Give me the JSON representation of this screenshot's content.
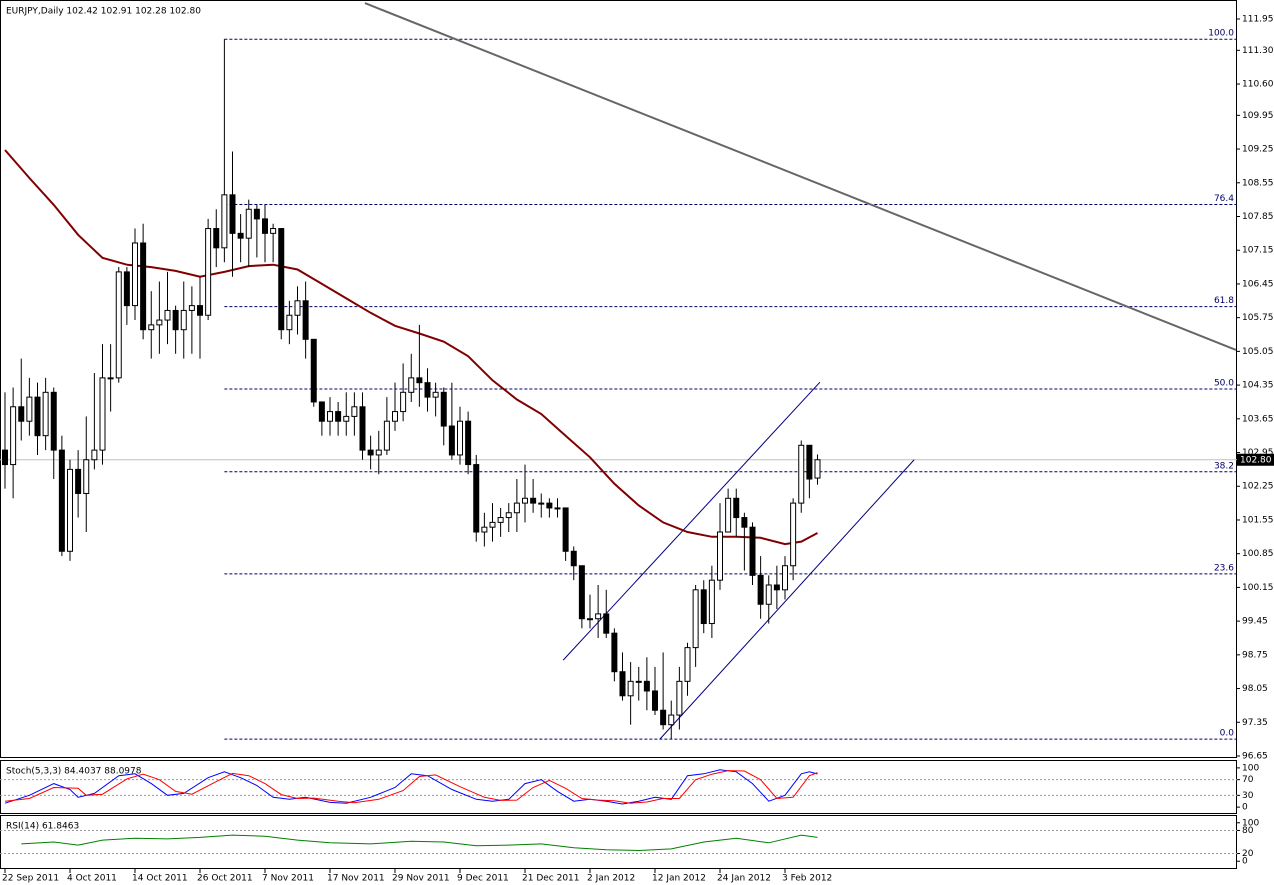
{
  "chart_data": {
    "type": "candlestick",
    "title": "EURJPY,Daily  102.42 102.91 102.28 102.80",
    "ohlc": [
      [
        103.0,
        104.2,
        102.2,
        102.7
      ],
      [
        102.7,
        104.3,
        102.0,
        103.9
      ],
      [
        103.9,
        104.9,
        103.2,
        103.6
      ],
      [
        103.6,
        104.5,
        103.3,
        104.1
      ],
      [
        104.1,
        104.4,
        102.9,
        103.3
      ],
      [
        103.3,
        104.5,
        103.0,
        104.2
      ],
      [
        104.2,
        104.3,
        102.4,
        103.0
      ],
      [
        103.0,
        103.3,
        100.8,
        100.9
      ],
      [
        100.9,
        102.8,
        100.7,
        102.6
      ],
      [
        102.6,
        103.0,
        101.6,
        102.1
      ],
      [
        102.1,
        103.7,
        101.3,
        102.8
      ],
      [
        102.8,
        104.6,
        102.6,
        103.0
      ],
      [
        103.0,
        105.2,
        102.7,
        104.5
      ],
      [
        104.5,
        105.2,
        103.8,
        104.5
      ],
      [
        104.5,
        106.8,
        104.4,
        106.7
      ],
      [
        106.7,
        106.8,
        105.6,
        106.0
      ],
      [
        106.0,
        107.6,
        105.7,
        107.3
      ],
      [
        107.3,
        107.7,
        105.3,
        105.5
      ],
      [
        105.5,
        106.3,
        104.9,
        105.6
      ],
      [
        105.6,
        106.5,
        105.0,
        105.7
      ],
      [
        105.7,
        106.7,
        105.2,
        105.9
      ],
      [
        105.9,
        106.0,
        105.0,
        105.5
      ],
      [
        105.5,
        106.5,
        104.9,
        105.9
      ],
      [
        105.9,
        106.4,
        105.0,
        106.0
      ],
      [
        106.0,
        106.6,
        104.9,
        105.8
      ],
      [
        105.8,
        107.8,
        105.7,
        107.6
      ],
      [
        107.6,
        108.0,
        106.8,
        107.2
      ],
      [
        107.2,
        111.53,
        106.9,
        108.3
      ],
      [
        108.3,
        109.2,
        106.6,
        107.5
      ],
      [
        107.5,
        107.9,
        106.9,
        107.4
      ],
      [
        107.4,
        108.2,
        106.8,
        108.0
      ],
      [
        108.0,
        108.1,
        107.0,
        107.8
      ],
      [
        107.8,
        108.1,
        106.9,
        107.5
      ],
      [
        107.5,
        107.7,
        106.9,
        107.6
      ],
      [
        107.6,
        107.6,
        105.3,
        105.5
      ],
      [
        105.5,
        106.1,
        105.2,
        105.8
      ],
      [
        105.8,
        106.4,
        105.4,
        106.1
      ],
      [
        106.1,
        106.5,
        104.9,
        105.3
      ],
      [
        105.3,
        105.3,
        103.9,
        104.0
      ],
      [
        104.0,
        104.0,
        103.3,
        103.6
      ],
      [
        103.6,
        104.1,
        103.3,
        103.8
      ],
      [
        103.8,
        104.0,
        103.3,
        103.6
      ],
      [
        103.6,
        104.2,
        103.3,
        103.7
      ],
      [
        103.7,
        104.2,
        103.3,
        103.9
      ],
      [
        103.9,
        104.2,
        102.8,
        103.0
      ],
      [
        103.0,
        103.3,
        102.6,
        102.9
      ],
      [
        102.9,
        103.4,
        102.5,
        103.0
      ],
      [
        103.0,
        104.1,
        102.9,
        103.6
      ],
      [
        103.6,
        104.4,
        103.4,
        103.8
      ],
      [
        103.8,
        104.8,
        103.6,
        104.2
      ],
      [
        104.2,
        105.0,
        104.0,
        104.5
      ],
      [
        104.5,
        105.6,
        103.9,
        104.4
      ],
      [
        104.4,
        104.7,
        103.8,
        104.1
      ],
      [
        104.1,
        104.4,
        103.7,
        104.2
      ],
      [
        104.2,
        104.3,
        103.1,
        103.5
      ],
      [
        103.5,
        104.4,
        102.8,
        102.9
      ],
      [
        102.9,
        103.9,
        102.7,
        103.6
      ],
      [
        103.6,
        103.8,
        102.5,
        102.7
      ],
      [
        102.7,
        102.9,
        101.1,
        101.3
      ],
      [
        101.3,
        101.7,
        101.0,
        101.4
      ],
      [
        101.4,
        101.9,
        101.1,
        101.5
      ],
      [
        101.5,
        101.8,
        101.2,
        101.6
      ],
      [
        101.6,
        101.9,
        101.3,
        101.7
      ],
      [
        101.7,
        102.4,
        101.3,
        101.9
      ],
      [
        101.9,
        102.7,
        101.5,
        102.0
      ],
      [
        102.0,
        102.4,
        101.7,
        101.9
      ],
      [
        101.9,
        102.1,
        101.6,
        101.9
      ],
      [
        101.9,
        102.0,
        101.6,
        101.8
      ],
      [
        101.8,
        102.0,
        101.6,
        101.8
      ],
      [
        101.8,
        101.8,
        100.7,
        100.9
      ],
      [
        100.9,
        101.0,
        100.3,
        100.6
      ],
      [
        100.6,
        100.6,
        99.3,
        99.5
      ],
      [
        99.5,
        100.0,
        99.3,
        99.5
      ],
      [
        99.5,
        100.2,
        99.1,
        99.6
      ],
      [
        99.6,
        100.1,
        99.1,
        99.2
      ],
      [
        99.2,
        99.3,
        98.2,
        98.4
      ],
      [
        98.4,
        98.8,
        97.8,
        97.9
      ],
      [
        97.9,
        98.6,
        97.3,
        98.2
      ],
      [
        98.2,
        98.5,
        97.8,
        98.2
      ],
      [
        98.2,
        98.7,
        97.6,
        98.0
      ],
      [
        98.0,
        98.5,
        97.5,
        97.6
      ],
      [
        97.6,
        98.8,
        97.2,
        97.3
      ],
      [
        97.3,
        97.8,
        97.0,
        97.5
      ],
      [
        97.5,
        98.5,
        97.2,
        98.2
      ],
      [
        98.2,
        99.0,
        97.9,
        98.9
      ],
      [
        98.9,
        100.2,
        98.5,
        100.1
      ],
      [
        100.1,
        100.3,
        99.2,
        99.4
      ],
      [
        99.4,
        100.6,
        99.1,
        100.3
      ],
      [
        100.3,
        101.9,
        100.1,
        101.3
      ],
      [
        101.3,
        102.2,
        101.3,
        102.0
      ],
      [
        102.0,
        102.2,
        101.2,
        101.6
      ],
      [
        101.6,
        101.7,
        100.5,
        101.4
      ],
      [
        101.4,
        101.5,
        100.2,
        100.4
      ],
      [
        100.4,
        100.8,
        99.5,
        99.8
      ],
      [
        99.8,
        100.4,
        99.4,
        100.2
      ],
      [
        100.2,
        100.6,
        99.7,
        100.1
      ],
      [
        100.1,
        100.8,
        99.9,
        100.6
      ],
      [
        100.6,
        102.0,
        100.3,
        101.9
      ],
      [
        101.9,
        103.2,
        101.7,
        103.1
      ],
      [
        103.1,
        103.1,
        102.0,
        102.4
      ],
      [
        102.42,
        102.91,
        102.28,
        102.8
      ]
    ],
    "colors": {
      "up": "#ffffff",
      "down": "#000000"
    },
    "ylim": [
      96.65,
      111.95
    ],
    "yticks": [
      111.95,
      {
        "value": 111.3,
        "label": "111.30"
      },
      {
        "value": 110.6,
        "label": "110.60"
      },
      109.95,
      109.25,
      108.55,
      107.85,
      107.15,
      106.45,
      105.75,
      105.05,
      104.35,
      103.65,
      102.95,
      102.25,
      101.55,
      100.85,
      100.15,
      99.45,
      98.75,
      98.05,
      97.35,
      96.65
    ],
    "xticks": [
      {
        "value": 0,
        "label": "22 Sep 2011"
      },
      {
        "value": 8,
        "label": "4 Oct 2011"
      },
      {
        "value": 16,
        "label": "14 Oct 2011"
      },
      {
        "value": 24,
        "label": "26 Oct 2011"
      },
      {
        "value": 32,
        "label": "7 Nov 2011"
      },
      {
        "value": 40,
        "label": "17 Nov 2011"
      },
      {
        "value": 48,
        "label": "29 Nov 2011"
      },
      {
        "value": 56,
        "label": "9 Dec 2011"
      },
      {
        "value": 64,
        "label": "21 Dec 2011"
      },
      {
        "value": 72,
        "label": "2 Jan 2012"
      },
      {
        "value": 80,
        "label": "12 Jan 2012"
      },
      {
        "value": 88,
        "label": "24 Jan 2012"
      },
      {
        "value": 96,
        "label": "3 Feb 2012"
      }
    ],
    "moving_average": {
      "color": "#800000",
      "x": [
        0,
        3,
        6,
        9,
        12,
        15,
        18,
        21,
        24,
        27,
        30,
        33,
        36,
        39,
        42,
        45,
        48,
        51,
        54,
        57,
        60,
        63,
        66,
        69,
        72,
        75,
        78,
        81,
        84,
        87,
        90,
        93,
        96,
        98,
        100
      ],
      "values": [
        109.23,
        108.65,
        108.09,
        107.47,
        106.99,
        106.85,
        106.8,
        106.72,
        106.6,
        106.7,
        106.82,
        106.85,
        106.75,
        106.45,
        106.15,
        105.85,
        105.58,
        105.42,
        105.25,
        104.95,
        104.45,
        104.05,
        103.75,
        103.3,
        102.85,
        102.3,
        101.85,
        101.5,
        101.3,
        101.2,
        101.2,
        101.18,
        101.05,
        101.1,
        101.28
      ]
    },
    "last_price": {
      "value": 102.8,
      "label": "102.80",
      "color": "#c0c0c0"
    },
    "fibonacci": {
      "start": 27,
      "color": "#000066",
      "levels": [
        {
          "label": "100.0",
          "value": 111.53
        },
        {
          "label": "76.4",
          "value": 108.1
        },
        {
          "label": "61.8",
          "value": 105.98
        },
        {
          "label": "50.0",
          "value": 104.27
        },
        {
          "label": "38.2",
          "value": 102.55
        },
        {
          "label": "23.6",
          "value": 100.43
        },
        {
          "label": "0.0",
          "value": 97.0
        }
      ]
    },
    "trendlines": [
      {
        "color": "#666666",
        "x": [
          44.3,
          151.5
        ],
        "y": [
          112.28,
          105.08
        ]
      },
      {
        "color": "#000080",
        "x": [
          68.7,
          100.3
        ],
        "y": [
          98.64,
          104.41
        ]
      },
      {
        "color": "#000080",
        "x": [
          80.6,
          111.9
        ],
        "y": [
          97.0,
          102.8
        ]
      }
    ],
    "indicators": [
      {
        "type": "line",
        "title": "Stoch(5,3,3) 84.4037 88.0978",
        "ylim": [
          -15,
          115
        ],
        "yticks": [
          0,
          30,
          70,
          100
        ],
        "levels": [
          30,
          70
        ],
        "series": [
          {
            "color": "#0000ff",
            "x": [
              0,
              3,
              6,
              8,
              9,
              11,
              14,
              16,
              18,
              20,
              22,
              25,
              27,
              29,
              31,
              33,
              35,
              37,
              40,
              42,
              45,
              48,
              50,
              52,
              55,
              58,
              60,
              62,
              64,
              66,
              68,
              70,
              72,
              74,
              76,
              78,
              80,
              82,
              84,
              86,
              88,
              90,
              92,
              94,
              96,
              98,
              99,
              100
            ],
            "values": [
              10,
              30,
              60,
              45,
              25,
              35,
              80,
              85,
              60,
              30,
              35,
              75,
              90,
              75,
              55,
              25,
              20,
              25,
              12,
              10,
              25,
              50,
              85,
              80,
              45,
              20,
              15,
              20,
              60,
              70,
              40,
              15,
              20,
              15,
              8,
              15,
              25,
              20,
              80,
              85,
              95,
              90,
              60,
              15,
              30,
              85,
              90,
              84.4
            ]
          },
          {
            "color": "#ff0000",
            "x": [
              0,
              3,
              6,
              9,
              10,
              12,
              15,
              17,
              19,
              21,
              23,
              26,
              28,
              30,
              32,
              34,
              36,
              38,
              41,
              43,
              46,
              49,
              51,
              53,
              56,
              59,
              61,
              63,
              65,
              67,
              69,
              71,
              73,
              75,
              77,
              79,
              81,
              83,
              85,
              87,
              89,
              91,
              93,
              95,
              97,
              99,
              100
            ],
            "values": [
              15,
              22,
              50,
              48,
              30,
              33,
              72,
              84,
              70,
              40,
              33,
              65,
              86,
              80,
              60,
              32,
              22,
              23,
              15,
              11,
              20,
              42,
              78,
              82,
              52,
              25,
              17,
              18,
              50,
              68,
              48,
              22,
              18,
              16,
              10,
              13,
              22,
              22,
              70,
              84,
              93,
              92,
              70,
              22,
              25,
              80,
              88.1
            ]
          }
        ]
      },
      {
        "type": "line",
        "title": "RSI(14) 61.8463",
        "ylim": [
          -15,
          115
        ],
        "yticks": [
          0,
          20,
          80,
          100
        ],
        "levels": [
          20,
          80
        ],
        "series": [
          {
            "color": "#008000",
            "x": [
              2,
              6,
              9,
              12,
              16,
              20,
              24,
              28,
              32,
              36,
              40,
              45,
              50,
              54,
              58,
              62,
              66,
              70,
              74,
              78,
              82,
              86,
              90,
              94,
              98,
              100
            ],
            "values": [
              45,
              50,
              42,
              55,
              60,
              58,
              62,
              68,
              65,
              55,
              48,
              45,
              52,
              50,
              40,
              42,
              45,
              35,
              30,
              28,
              32,
              50,
              60,
              48,
              68,
              61.85
            ]
          }
        ]
      }
    ]
  }
}
